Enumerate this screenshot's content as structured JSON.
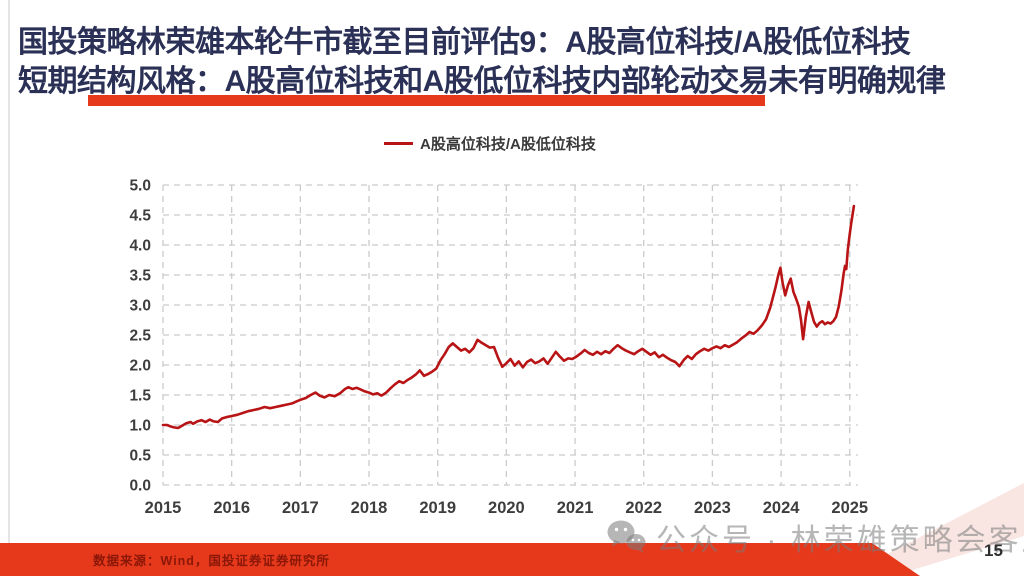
{
  "slide": {
    "title_line1": "国投策略林荣雄本轮牛市截至目前评估9：A股高位科技/A股低位科技",
    "title_line2": "短期结构风格：A股高位科技和A股低位科技内部轮动交易未有明确规律",
    "footer_source": "数据来源：Wind，国投证券证券研究所",
    "watermark_text": "公众号 · 林荣雄策略会客厅",
    "page_number": "15",
    "colors": {
      "title_navy": "#2b3156",
      "accent_red": "#e6391b",
      "line_red": "#b81415",
      "gridline_gray": "#cbcbcb",
      "tick_text": "#3d3d3d",
      "footer_text_maroon": "#8a1708",
      "watermark_gray": "#7a7a7a",
      "pink_band": "#f7ddd8"
    }
  },
  "chart_data": {
    "type": "line",
    "title": "",
    "xlabel": "",
    "ylabel": "",
    "legend": [
      "A股高位科技/A股低位科技"
    ],
    "legend_position": "top-center",
    "grid": "dashed",
    "xlim": [
      2015,
      2025.12
    ],
    "ylim": [
      0,
      5
    ],
    "x_ticks": [
      2015,
      2016,
      2017,
      2018,
      2019,
      2020,
      2021,
      2022,
      2023,
      2024,
      2025
    ],
    "y_ticks": [
      0.0,
      0.5,
      1.0,
      1.5,
      2.0,
      2.5,
      3.0,
      3.5,
      4.0,
      4.5,
      5.0
    ],
    "series": [
      {
        "name": "A股高位科技/A股低位科技",
        "color": "#b81415",
        "points": [
          [
            2015.0,
            1.0
          ],
          [
            2015.06,
            1.0
          ],
          [
            2015.1,
            0.98
          ],
          [
            2015.16,
            0.96
          ],
          [
            2015.22,
            0.95
          ],
          [
            2015.28,
            0.99
          ],
          [
            2015.34,
            1.03
          ],
          [
            2015.4,
            1.05
          ],
          [
            2015.44,
            1.02
          ],
          [
            2015.5,
            1.06
          ],
          [
            2015.56,
            1.08
          ],
          [
            2015.62,
            1.05
          ],
          [
            2015.68,
            1.09
          ],
          [
            2015.74,
            1.06
          ],
          [
            2015.8,
            1.05
          ],
          [
            2015.86,
            1.11
          ],
          [
            2015.92,
            1.13
          ],
          [
            2016.0,
            1.15
          ],
          [
            2016.08,
            1.17
          ],
          [
            2016.16,
            1.2
          ],
          [
            2016.24,
            1.23
          ],
          [
            2016.32,
            1.25
          ],
          [
            2016.4,
            1.27
          ],
          [
            2016.48,
            1.3
          ],
          [
            2016.56,
            1.28
          ],
          [
            2016.64,
            1.3
          ],
          [
            2016.72,
            1.32
          ],
          [
            2016.8,
            1.34
          ],
          [
            2016.88,
            1.36
          ],
          [
            2016.94,
            1.39
          ],
          [
            2017.0,
            1.42
          ],
          [
            2017.08,
            1.45
          ],
          [
            2017.15,
            1.5
          ],
          [
            2017.22,
            1.54
          ],
          [
            2017.28,
            1.49
          ],
          [
            2017.35,
            1.46
          ],
          [
            2017.42,
            1.5
          ],
          [
            2017.5,
            1.48
          ],
          [
            2017.58,
            1.53
          ],
          [
            2017.65,
            1.6
          ],
          [
            2017.7,
            1.63
          ],
          [
            2017.76,
            1.6
          ],
          [
            2017.82,
            1.62
          ],
          [
            2017.88,
            1.59
          ],
          [
            2017.94,
            1.56
          ],
          [
            2018.0,
            1.54
          ],
          [
            2018.06,
            1.51
          ],
          [
            2018.12,
            1.53
          ],
          [
            2018.18,
            1.49
          ],
          [
            2018.25,
            1.54
          ],
          [
            2018.32,
            1.62
          ],
          [
            2018.38,
            1.68
          ],
          [
            2018.44,
            1.73
          ],
          [
            2018.5,
            1.7
          ],
          [
            2018.56,
            1.75
          ],
          [
            2018.62,
            1.79
          ],
          [
            2018.68,
            1.84
          ],
          [
            2018.74,
            1.91
          ],
          [
            2018.8,
            1.82
          ],
          [
            2018.86,
            1.85
          ],
          [
            2018.92,
            1.89
          ],
          [
            2018.98,
            1.94
          ],
          [
            2019.04,
            2.08
          ],
          [
            2019.1,
            2.18
          ],
          [
            2019.16,
            2.3
          ],
          [
            2019.22,
            2.36
          ],
          [
            2019.28,
            2.3
          ],
          [
            2019.34,
            2.24
          ],
          [
            2019.4,
            2.27
          ],
          [
            2019.46,
            2.21
          ],
          [
            2019.52,
            2.28
          ],
          [
            2019.58,
            2.42
          ],
          [
            2019.64,
            2.37
          ],
          [
            2019.7,
            2.33
          ],
          [
            2019.76,
            2.29
          ],
          [
            2019.82,
            2.3
          ],
          [
            2019.88,
            2.12
          ],
          [
            2019.94,
            1.97
          ],
          [
            2020.0,
            2.03
          ],
          [
            2020.06,
            2.1
          ],
          [
            2020.12,
            1.99
          ],
          [
            2020.18,
            2.06
          ],
          [
            2020.24,
            1.96
          ],
          [
            2020.3,
            2.05
          ],
          [
            2020.36,
            2.09
          ],
          [
            2020.42,
            2.03
          ],
          [
            2020.48,
            2.06
          ],
          [
            2020.54,
            2.11
          ],
          [
            2020.6,
            2.02
          ],
          [
            2020.66,
            2.12
          ],
          [
            2020.72,
            2.22
          ],
          [
            2020.78,
            2.14
          ],
          [
            2020.84,
            2.07
          ],
          [
            2020.9,
            2.11
          ],
          [
            2020.96,
            2.1
          ],
          [
            2021.02,
            2.14
          ],
          [
            2021.08,
            2.19
          ],
          [
            2021.14,
            2.25
          ],
          [
            2021.2,
            2.2
          ],
          [
            2021.26,
            2.17
          ],
          [
            2021.32,
            2.22
          ],
          [
            2021.38,
            2.18
          ],
          [
            2021.44,
            2.23
          ],
          [
            2021.5,
            2.2
          ],
          [
            2021.56,
            2.27
          ],
          [
            2021.62,
            2.33
          ],
          [
            2021.68,
            2.28
          ],
          [
            2021.74,
            2.24
          ],
          [
            2021.8,
            2.21
          ],
          [
            2021.86,
            2.18
          ],
          [
            2021.92,
            2.23
          ],
          [
            2021.98,
            2.27
          ],
          [
            2022.04,
            2.22
          ],
          [
            2022.1,
            2.17
          ],
          [
            2022.16,
            2.21
          ],
          [
            2022.22,
            2.13
          ],
          [
            2022.28,
            2.17
          ],
          [
            2022.34,
            2.12
          ],
          [
            2022.4,
            2.08
          ],
          [
            2022.46,
            2.05
          ],
          [
            2022.52,
            1.98
          ],
          [
            2022.58,
            2.08
          ],
          [
            2022.64,
            2.15
          ],
          [
            2022.7,
            2.1
          ],
          [
            2022.76,
            2.18
          ],
          [
            2022.82,
            2.23
          ],
          [
            2022.88,
            2.27
          ],
          [
            2022.94,
            2.24
          ],
          [
            2023.0,
            2.28
          ],
          [
            2023.06,
            2.31
          ],
          [
            2023.12,
            2.28
          ],
          [
            2023.18,
            2.33
          ],
          [
            2023.24,
            2.3
          ],
          [
            2023.3,
            2.34
          ],
          [
            2023.36,
            2.38
          ],
          [
            2023.42,
            2.44
          ],
          [
            2023.48,
            2.49
          ],
          [
            2023.54,
            2.55
          ],
          [
            2023.6,
            2.52
          ],
          [
            2023.66,
            2.58
          ],
          [
            2023.72,
            2.66
          ],
          [
            2023.78,
            2.76
          ],
          [
            2023.84,
            2.95
          ],
          [
            2023.88,
            3.12
          ],
          [
            2023.92,
            3.3
          ],
          [
            2023.96,
            3.5
          ],
          [
            2023.99,
            3.62
          ],
          [
            2024.02,
            3.38
          ],
          [
            2024.06,
            3.16
          ],
          [
            2024.1,
            3.33
          ],
          [
            2024.14,
            3.44
          ],
          [
            2024.18,
            3.22
          ],
          [
            2024.22,
            3.1
          ],
          [
            2024.26,
            2.97
          ],
          [
            2024.29,
            2.75
          ],
          [
            2024.32,
            2.43
          ],
          [
            2024.36,
            2.8
          ],
          [
            2024.4,
            3.05
          ],
          [
            2024.44,
            2.88
          ],
          [
            2024.48,
            2.72
          ],
          [
            2024.52,
            2.64
          ],
          [
            2024.56,
            2.7
          ],
          [
            2024.6,
            2.73
          ],
          [
            2024.64,
            2.68
          ],
          [
            2024.68,
            2.71
          ],
          [
            2024.72,
            2.69
          ],
          [
            2024.76,
            2.73
          ],
          [
            2024.8,
            2.8
          ],
          [
            2024.84,
            2.98
          ],
          [
            2024.88,
            3.25
          ],
          [
            2024.91,
            3.52
          ],
          [
            2024.93,
            3.65
          ],
          [
            2024.95,
            3.6
          ],
          [
            2024.97,
            3.9
          ],
          [
            2024.99,
            4.1
          ],
          [
            2025.02,
            4.35
          ],
          [
            2025.04,
            4.5
          ],
          [
            2025.06,
            4.65
          ]
        ]
      }
    ]
  }
}
